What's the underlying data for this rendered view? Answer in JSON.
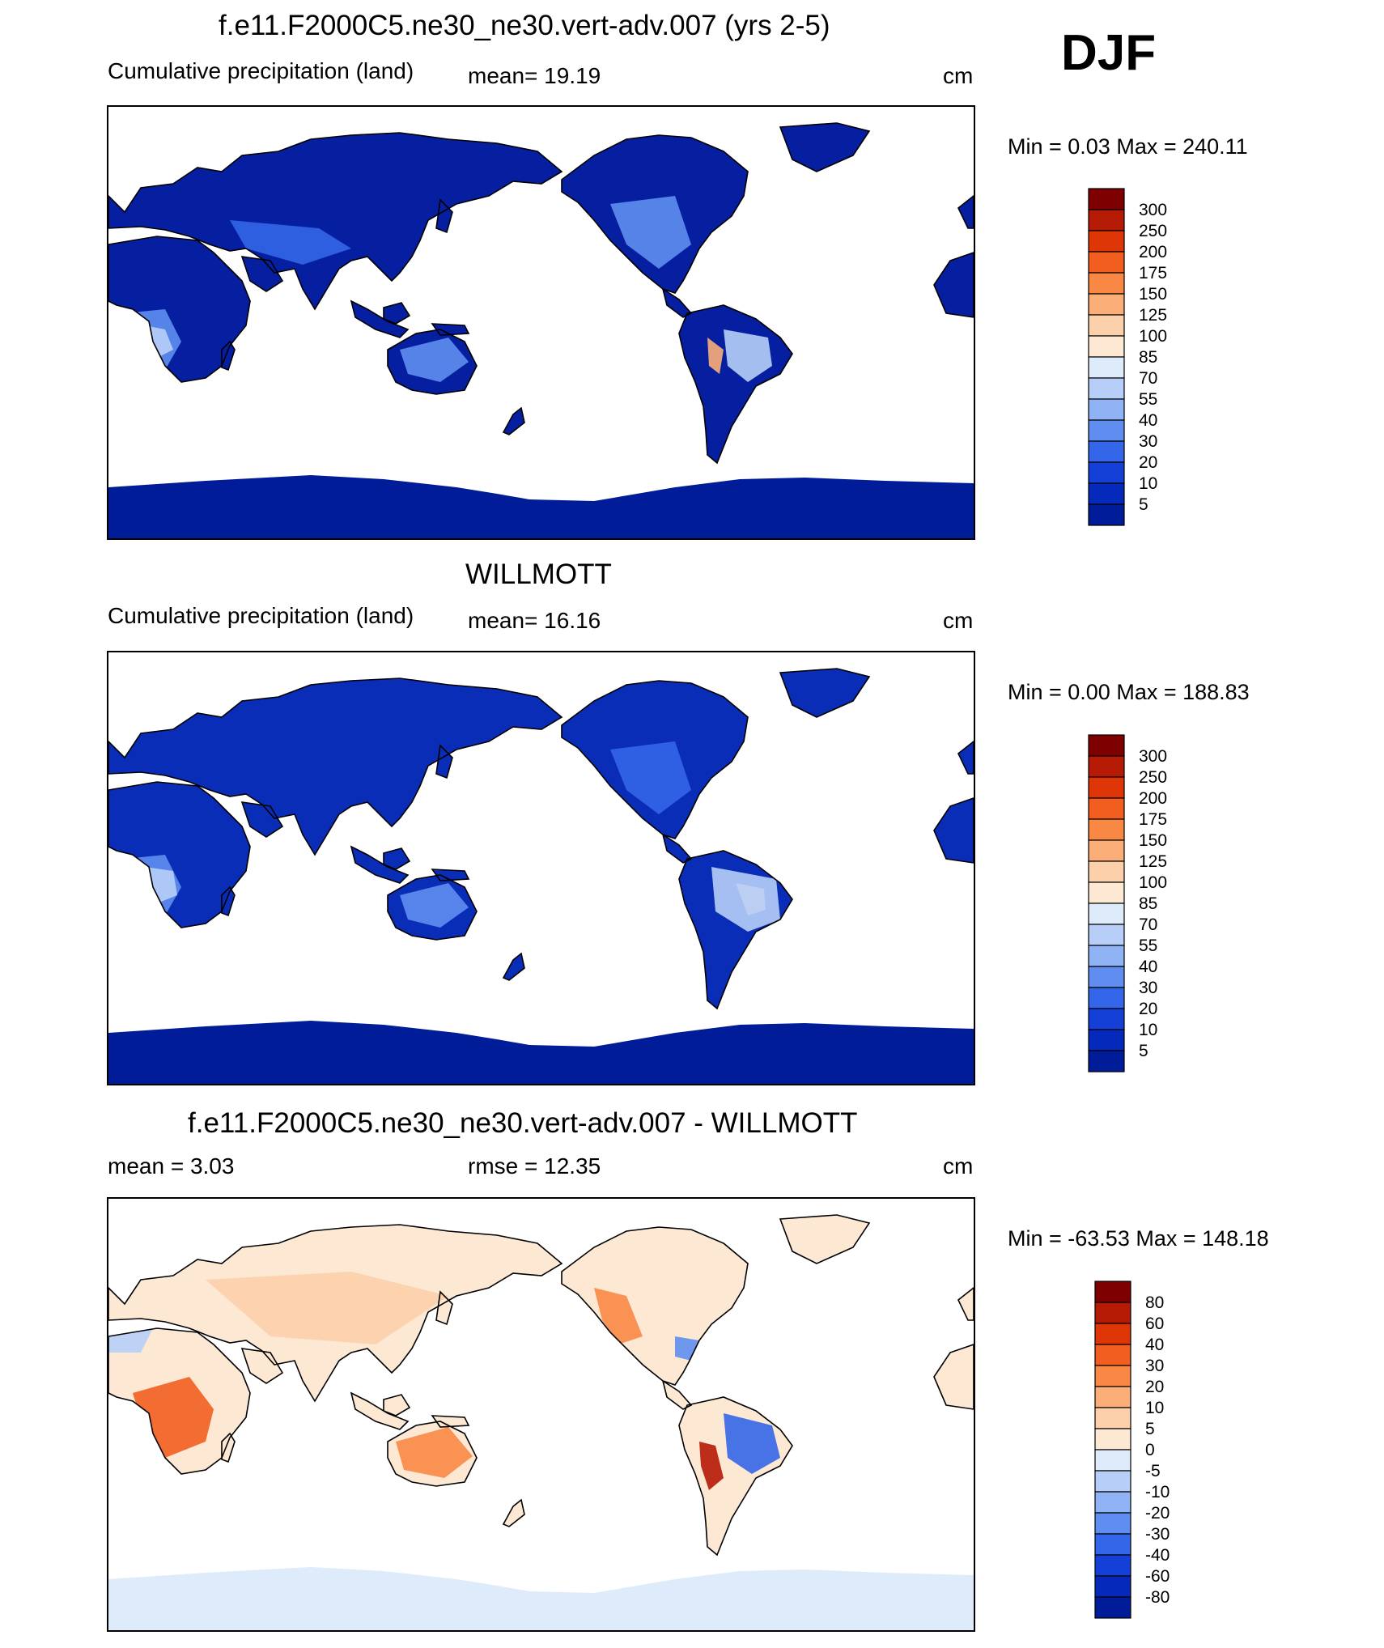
{
  "season": "DJF",
  "panels": [
    {
      "id": "model",
      "title": "f.e11.F2000C5.ne30_ne30.vert-adv.007 (yrs 2-5)",
      "left_label": "Cumulative precipitation (land)",
      "center_label": "mean=  19.19",
      "units": "cm",
      "minmax": "Min =    0.03 Max = 240.11",
      "colorbar_levels": [
        "300",
        "250",
        "200",
        "175",
        "150",
        "125",
        "100",
        "85",
        "70",
        "55",
        "40",
        "30",
        "20",
        "10",
        "5"
      ],
      "colorbar_colors": [
        "#7f0000",
        "#b51a05",
        "#df3607",
        "#f25e1f",
        "#f98845",
        "#fbae78",
        "#fcd0aa",
        "#fde8d4",
        "#deebfb",
        "#b7cff8",
        "#8fb3f5",
        "#5f8ef0",
        "#3366e8",
        "#1440d8",
        "#052abb",
        "#001c98"
      ]
    },
    {
      "id": "obs",
      "title": "WILLMOTT",
      "left_label": "Cumulative precipitation (land)",
      "center_label": "mean=  16.16",
      "units": "cm",
      "minmax": "Min =    0.00 Max = 188.83",
      "colorbar_levels": [
        "300",
        "250",
        "200",
        "175",
        "150",
        "125",
        "100",
        "85",
        "70",
        "55",
        "40",
        "30",
        "20",
        "10",
        "5"
      ],
      "colorbar_colors": [
        "#7f0000",
        "#b51a05",
        "#df3607",
        "#f25e1f",
        "#f98845",
        "#fbae78",
        "#fcd0aa",
        "#fde8d4",
        "#deebfb",
        "#b7cff8",
        "#8fb3f5",
        "#5f8ef0",
        "#3366e8",
        "#1440d8",
        "#052abb",
        "#001c98"
      ]
    },
    {
      "id": "diff",
      "title": "f.e11.F2000C5.ne30_ne30.vert-adv.007 - WILLMOTT",
      "left_label": "mean =    3.03",
      "center_label": "rmse =   12.35",
      "units": "cm",
      "minmax": "Min = -63.53 Max = 148.18",
      "colorbar_levels": [
        "80",
        "60",
        "40",
        "30",
        "20",
        "10",
        "5",
        "0",
        "-5",
        "-10",
        "-20",
        "-30",
        "-40",
        "-60",
        "-80"
      ],
      "colorbar_colors": [
        "#7f0000",
        "#b51a05",
        "#df3607",
        "#f25e1f",
        "#f98845",
        "#fbae78",
        "#fcd0aa",
        "#fde8d4",
        "#deebfb",
        "#b7cff8",
        "#8fb3f5",
        "#5f8ef0",
        "#3366e8",
        "#1440d8",
        "#052abb",
        "#001c98"
      ]
    }
  ]
}
